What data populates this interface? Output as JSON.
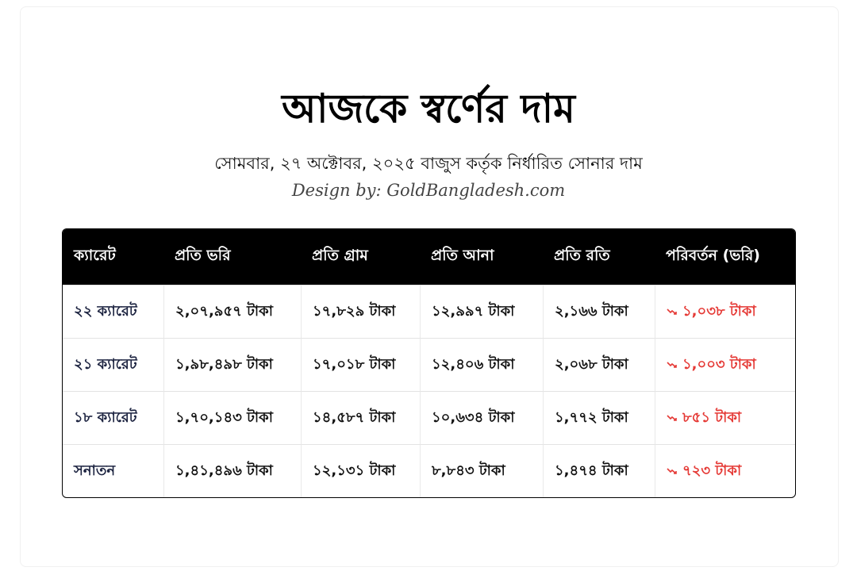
{
  "header": {
    "title": "আজকে স্বর্ণের দাম",
    "subtitle": "সোমবার, ২৭ অক্টোবর, ২০২৫ বাজুস কর্তৃক নির্ধারিত সোনার দাম",
    "credit": "Design by: GoldBangladesh.com"
  },
  "table": {
    "columns": [
      "ক্যারেট",
      "প্রতি ভরি",
      "প্রতি গ্রাম",
      "প্রতি আনা",
      "প্রতি রতি",
      "পরিবর্তন (ভরি)"
    ],
    "rows": [
      {
        "karat": "২২ ক্যারেট",
        "vori": "২,০৭,৯৫৭ টাকা",
        "gram": "১৭,৮২৯ টাকা",
        "ana": "১২,৯৯৭ টাকা",
        "roti": "২,১৬৬ টাকা",
        "change": "১,০৩৮ টাকা"
      },
      {
        "karat": "২১ ক্যারেট",
        "vori": "১,৯৮,৪৯৮ টাকা",
        "gram": "১৭,০১৮ টাকা",
        "ana": "১২,৪০৬ টাকা",
        "roti": "২,০৬৮ টাকা",
        "change": "১,০০৩ টাকা"
      },
      {
        "karat": "১৮ ক্যারেট",
        "vori": "১,৭০,১৪৩ টাকা",
        "gram": "১৪,৫৮৭ টাকা",
        "ana": "১০,৬৩৪ টাকা",
        "roti": "১,৭৭২ টাকা",
        "change": "৮৫১ টাকা"
      },
      {
        "karat": "সনাতন",
        "vori": "১,৪১,৪৯৬ টাকা",
        "gram": "১২,১৩১ টাকা",
        "ana": "৮,৮৪৩ টাকা",
        "roti": "১,৪৭৪ টাকা",
        "change": "৭২৩ টাকা"
      }
    ],
    "change_icon": "trending-down-icon",
    "change_color": "#e53935"
  }
}
